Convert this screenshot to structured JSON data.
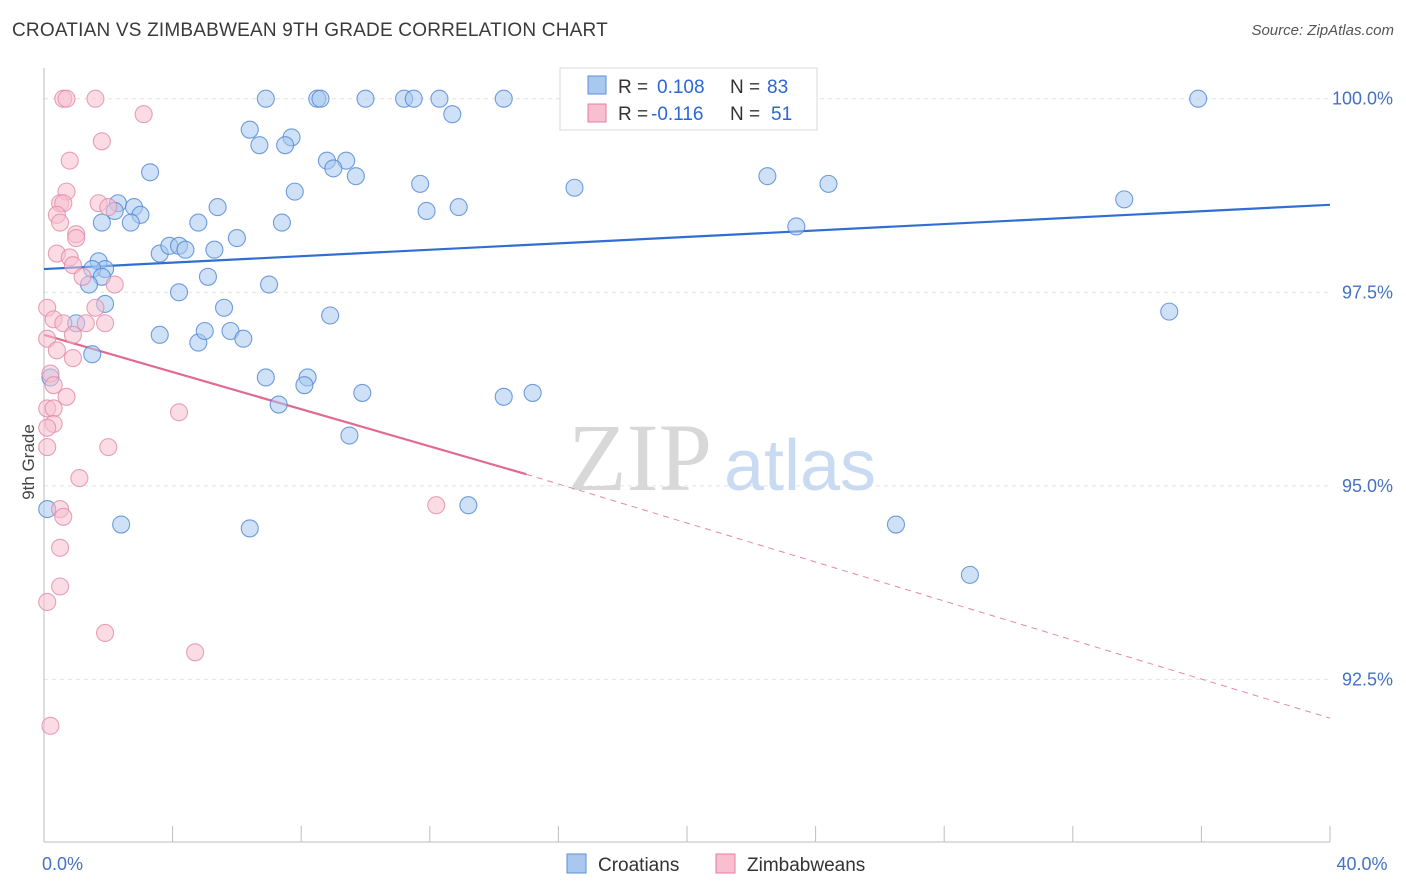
{
  "header": {
    "title": "CROATIAN VS ZIMBABWEAN 9TH GRADE CORRELATION CHART",
    "source": "Source: ZipAtlas.com"
  },
  "watermark": {
    "zip": "ZIP",
    "atlas": "atlas"
  },
  "stats": [
    {
      "r_label": "R =",
      "r_value": "0.108",
      "n_label": "N =",
      "n_value": "83",
      "color": "#a8c8f0",
      "stroke": "#5b8fd6"
    },
    {
      "r_label": "R =",
      "r_value": "-0.116",
      "n_label": "N =",
      "n_value": "51",
      "color": "#f8bfd0",
      "stroke": "#e87ea0"
    }
  ],
  "legend": {
    "croatians": "Croatians",
    "zimbabweans": "Zimbabweans"
  },
  "chart_data": {
    "type": "scatter",
    "title": "CROATIAN VS ZIMBABWEAN 9TH GRADE CORRELATION CHART",
    "xlabel": "",
    "ylabel": "9th Grade",
    "xlim": [
      0,
      40
    ],
    "ylim": [
      90.4,
      100.5
    ],
    "x_ticks": [
      0,
      4,
      8,
      12,
      16,
      20,
      24,
      28,
      32,
      36,
      40
    ],
    "x_tick_labels": {
      "0": "0.0%",
      "40": "40.0%"
    },
    "y_ticks": [
      92.5,
      95.0,
      97.5,
      100.0
    ],
    "y_tick_labels": [
      "92.5%",
      "95.0%",
      "97.5%",
      "100.0%"
    ],
    "grid": true,
    "legend_position": "bottom-center",
    "series": [
      {
        "name": "Croatians",
        "color": "#a8c8f0",
        "stroke": "#4f86d4",
        "trend": {
          "x0": 0,
          "y0": 97.8,
          "x1": 40,
          "y1": 98.63,
          "style": "solid",
          "color": "#2f6fd0"
        },
        "points": [
          [
            6.9,
            100
          ],
          [
            8.5,
            100
          ],
          [
            8.6,
            100
          ],
          [
            10.0,
            100
          ],
          [
            11.2,
            100
          ],
          [
            11.5,
            100
          ],
          [
            12.3,
            100
          ],
          [
            14.3,
            100
          ],
          [
            17.7,
            100
          ],
          [
            35.9,
            100
          ],
          [
            18.0,
            100
          ],
          [
            23.3,
            100
          ],
          [
            12.7,
            99.8
          ],
          [
            6.4,
            99.6
          ],
          [
            7.7,
            99.5
          ],
          [
            6.7,
            99.4
          ],
          [
            7.5,
            99.4
          ],
          [
            8.8,
            99.2
          ],
          [
            9.4,
            99.2
          ],
          [
            9.0,
            99.1
          ],
          [
            9.7,
            99.0
          ],
          [
            3.3,
            99.05
          ],
          [
            11.7,
            98.9
          ],
          [
            16.5,
            98.85
          ],
          [
            22.5,
            99.0
          ],
          [
            24.4,
            98.9
          ],
          [
            7.8,
            98.8
          ],
          [
            33.6,
            98.7
          ],
          [
            2.3,
            98.65
          ],
          [
            2.2,
            98.55
          ],
          [
            2.8,
            98.6
          ],
          [
            3.0,
            98.5
          ],
          [
            5.4,
            98.6
          ],
          [
            11.9,
            98.55
          ],
          [
            12.9,
            98.6
          ],
          [
            1.8,
            98.4
          ],
          [
            2.7,
            98.4
          ],
          [
            4.8,
            98.4
          ],
          [
            7.4,
            98.4
          ],
          [
            23.4,
            98.35
          ],
          [
            6.0,
            98.2
          ],
          [
            3.6,
            98.0
          ],
          [
            3.9,
            98.1
          ],
          [
            4.2,
            98.1
          ],
          [
            4.4,
            98.05
          ],
          [
            5.3,
            98.05
          ],
          [
            1.7,
            97.9
          ],
          [
            1.9,
            97.8
          ],
          [
            1.5,
            97.8
          ],
          [
            1.8,
            97.7
          ],
          [
            1.4,
            97.6
          ],
          [
            5.1,
            97.7
          ],
          [
            7.0,
            97.6
          ],
          [
            4.2,
            97.5
          ],
          [
            35.0,
            97.25
          ],
          [
            1.9,
            97.35
          ],
          [
            1.0,
            97.1
          ],
          [
            8.9,
            97.2
          ],
          [
            5.6,
            97.3
          ],
          [
            3.6,
            96.95
          ],
          [
            4.8,
            96.85
          ],
          [
            5.0,
            97.0
          ],
          [
            5.8,
            97.0
          ],
          [
            6.2,
            96.9
          ],
          [
            1.5,
            96.7
          ],
          [
            0.2,
            96.4
          ],
          [
            6.9,
            96.4
          ],
          [
            8.2,
            96.4
          ],
          [
            8.1,
            96.3
          ],
          [
            9.9,
            96.2
          ],
          [
            14.3,
            96.15
          ],
          [
            15.2,
            96.2
          ],
          [
            7.3,
            96.05
          ],
          [
            9.5,
            95.65
          ],
          [
            13.2,
            94.75
          ],
          [
            2.4,
            94.5
          ],
          [
            6.4,
            94.45
          ],
          [
            26.5,
            94.5
          ],
          [
            28.8,
            93.85
          ],
          [
            0.1,
            94.7
          ]
        ]
      },
      {
        "name": "Zimbabweans",
        "color": "#f8bfd0",
        "stroke": "#e48aa8",
        "trend": {
          "x0": 0,
          "y0": 96.95,
          "x1": 15.0,
          "y1": 95.15,
          "style": "solid",
          "color": "#e06a92",
          "ext_x1": 40,
          "ext_y1": 92.0
        },
        "points": [
          [
            0.6,
            100
          ],
          [
            0.7,
            100
          ],
          [
            1.6,
            100
          ],
          [
            3.1,
            99.8
          ],
          [
            1.8,
            99.45
          ],
          [
            0.8,
            99.2
          ],
          [
            0.7,
            98.8
          ],
          [
            0.5,
            98.65
          ],
          [
            0.6,
            98.65
          ],
          [
            1.7,
            98.65
          ],
          [
            2.0,
            98.6
          ],
          [
            0.4,
            98.5
          ],
          [
            0.5,
            98.4
          ],
          [
            1.0,
            98.25
          ],
          [
            1.0,
            98.2
          ],
          [
            0.4,
            98.0
          ],
          [
            0.8,
            97.95
          ],
          [
            0.9,
            97.85
          ],
          [
            1.2,
            97.7
          ],
          [
            2.2,
            97.6
          ],
          [
            0.1,
            97.3
          ],
          [
            1.6,
            97.3
          ],
          [
            0.3,
            97.15
          ],
          [
            0.6,
            97.1
          ],
          [
            1.3,
            97.1
          ],
          [
            1.9,
            97.1
          ],
          [
            0.9,
            96.95
          ],
          [
            0.1,
            96.9
          ],
          [
            0.4,
            96.75
          ],
          [
            0.9,
            96.65
          ],
          [
            0.2,
            96.45
          ],
          [
            0.3,
            96.3
          ],
          [
            0.7,
            96.15
          ],
          [
            0.1,
            96.0
          ],
          [
            0.3,
            96.0
          ],
          [
            4.2,
            95.95
          ],
          [
            0.3,
            95.8
          ],
          [
            0.1,
            95.75
          ],
          [
            2.0,
            95.5
          ],
          [
            0.1,
            95.5
          ],
          [
            1.1,
            95.1
          ],
          [
            0.5,
            94.7
          ],
          [
            0.6,
            94.6
          ],
          [
            12.2,
            94.75
          ],
          [
            0.5,
            94.2
          ],
          [
            0.5,
            93.7
          ],
          [
            0.1,
            93.5
          ],
          [
            1.9,
            93.1
          ],
          [
            4.7,
            92.85
          ],
          [
            0.2,
            91.9
          ]
        ]
      }
    ]
  }
}
